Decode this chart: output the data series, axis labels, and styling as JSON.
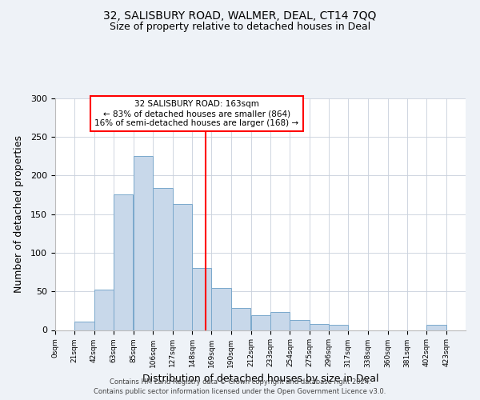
{
  "title1": "32, SALISBURY ROAD, WALMER, DEAL, CT14 7QQ",
  "title2": "Size of property relative to detached houses in Deal",
  "xlabel": "Distribution of detached houses by size in Deal",
  "ylabel": "Number of detached properties",
  "bar_left_edges": [
    0,
    21,
    42,
    63,
    85,
    106,
    127,
    148,
    169,
    190,
    212,
    233,
    254,
    275,
    296,
    317,
    338,
    360,
    381,
    402
  ],
  "bar_heights": [
    0,
    11,
    52,
    175,
    225,
    184,
    163,
    80,
    54,
    28,
    19,
    23,
    13,
    8,
    7,
    0,
    0,
    0,
    0,
    7
  ],
  "bin_width": 21,
  "bar_facecolor": "#c8d8ea",
  "bar_edgecolor": "#7aa8cc",
  "property_size": 163,
  "vline_color": "red",
  "annotation_box_edgecolor": "red",
  "annotation_line1": "32 SALISBURY ROAD: 163sqm",
  "annotation_line2": "← 83% of detached houses are smaller (864)",
  "annotation_line3": "16% of semi-detached houses are larger (168) →",
  "xlim_min": 0,
  "xlim_max": 444,
  "ylim_min": 0,
  "ylim_max": 300,
  "xtick_positions": [
    0,
    21,
    42,
    63,
    85,
    106,
    127,
    148,
    169,
    190,
    212,
    233,
    254,
    275,
    296,
    317,
    338,
    360,
    381,
    402,
    423
  ],
  "xtick_labels": [
    "0sqm",
    "21sqm",
    "42sqm",
    "63sqm",
    "85sqm",
    "106sqm",
    "127sqm",
    "148sqm",
    "169sqm",
    "190sqm",
    "212sqm",
    "233sqm",
    "254sqm",
    "275sqm",
    "296sqm",
    "317sqm",
    "338sqm",
    "360sqm",
    "381sqm",
    "402sqm",
    "423sqm"
  ],
  "ytick_positions": [
    0,
    50,
    100,
    150,
    200,
    250,
    300
  ],
  "ytick_labels": [
    "0",
    "50",
    "100",
    "150",
    "200",
    "250",
    "300"
  ],
  "footer1": "Contains HM Land Registry data © Crown copyright and database right 2024.",
  "footer2": "Contains public sector information licensed under the Open Government Licence v3.0.",
  "background_color": "#eef2f7",
  "plot_background_color": "#ffffff",
  "grid_color": "#c8d0dc"
}
